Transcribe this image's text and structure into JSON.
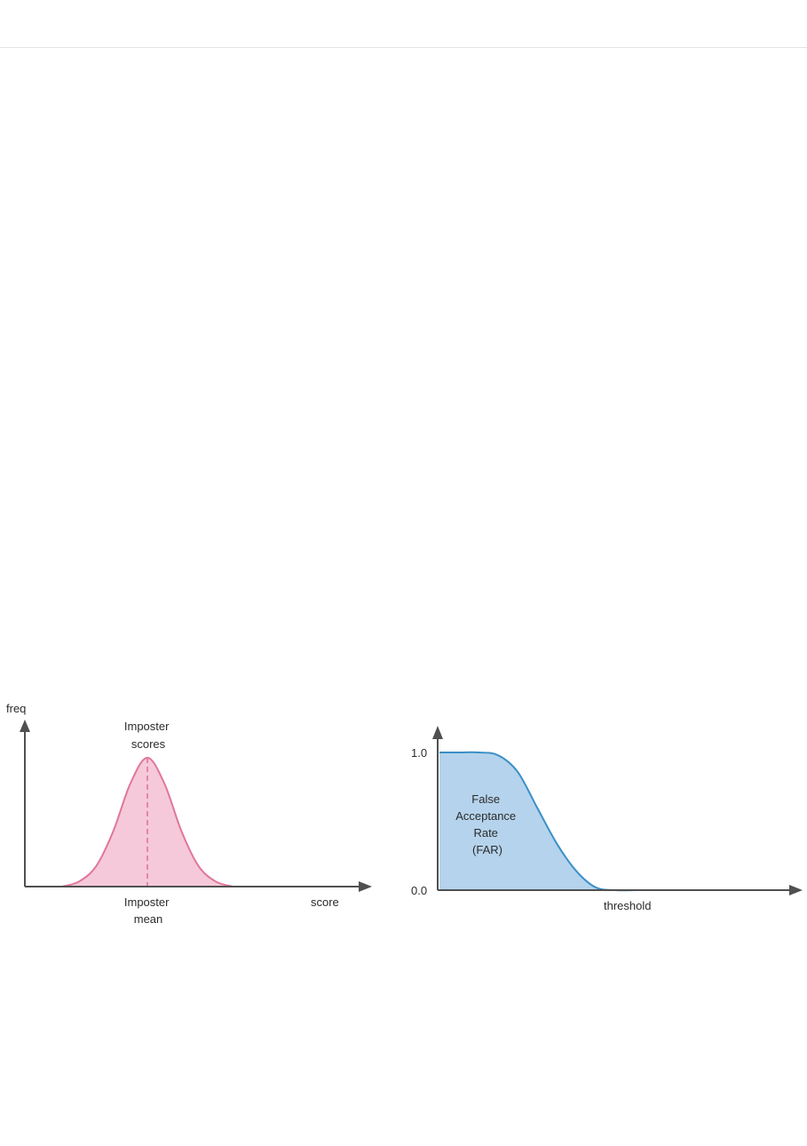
{
  "chart_data": [
    {
      "type": "area",
      "xlabel": "score",
      "ylabel": "freq",
      "colors": {
        "line": "#e0769b",
        "fill": "#f5c9d9",
        "annotation": "#e8879f"
      },
      "series": [
        {
          "name": "Imposter scores",
          "x": [
            0.0,
            0.1,
            0.2,
            0.3,
            0.4,
            0.5,
            0.6,
            0.7,
            0.8,
            0.9,
            1.0
          ],
          "y": [
            0.0,
            0.04,
            0.16,
            0.43,
            0.8,
            1.0,
            0.8,
            0.43,
            0.16,
            0.04,
            0.0
          ]
        }
      ],
      "annotations": [
        {
          "text_lines": [
            "Imposter",
            "scores"
          ]
        },
        {
          "text_lines": [
            "Imposter",
            "mean"
          ],
          "x": 0.5,
          "style": "dashed-vertical"
        }
      ],
      "grid": false,
      "ticks": false
    },
    {
      "type": "area",
      "xlabel": "threshold",
      "ylabel": "",
      "ylim": [
        0.0,
        1.0
      ],
      "yticks": [
        "1.0",
        "0.0"
      ],
      "colors": {
        "line": "#3a8fc7",
        "fill": "#b5d3ec"
      },
      "series": [
        {
          "name": "False Acceptance Rate (FAR)",
          "x": [
            0.0,
            0.1,
            0.2,
            0.3,
            0.4,
            0.5,
            0.6,
            0.7,
            0.8,
            0.9,
            1.0
          ],
          "y": [
            1.0,
            1.0,
            1.0,
            0.98,
            0.86,
            0.6,
            0.34,
            0.14,
            0.02,
            0.0,
            0.0
          ]
        }
      ],
      "fill_label_lines": [
        "False",
        "Acceptance",
        "Rate",
        "(FAR)"
      ],
      "grid": false
    }
  ]
}
